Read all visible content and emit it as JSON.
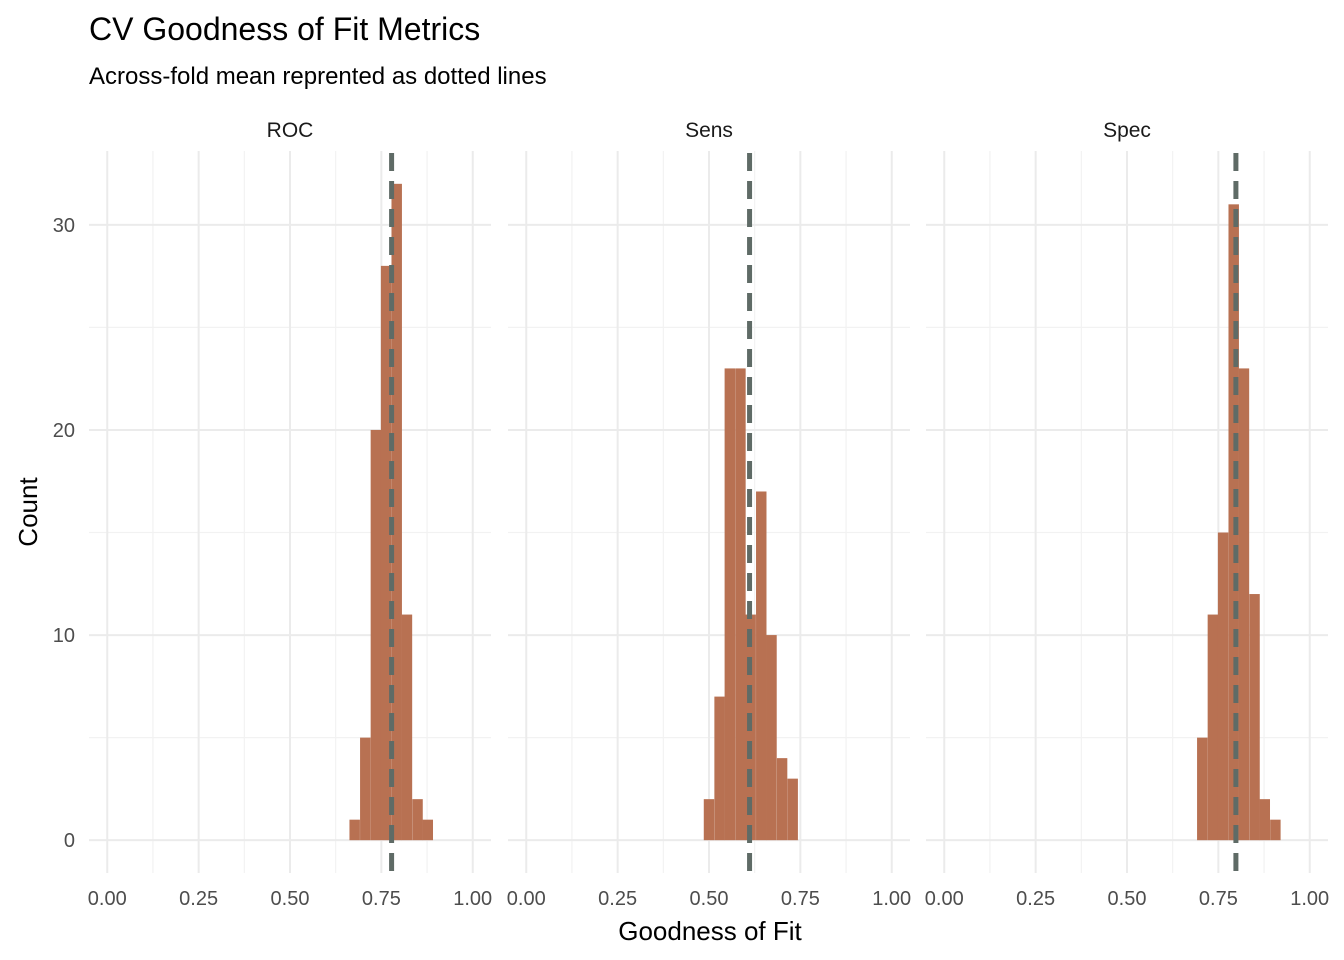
{
  "title": "CV Goodness of Fit Metrics",
  "subtitle": "Across-fold mean reprented as dotted lines",
  "chart_data": {
    "type": "histogram",
    "xlabel": "Goodness of Fit",
    "ylabel": "Count",
    "xlim": [
      -0.05,
      1.05
    ],
    "ylim": [
      -1.6,
      33.6
    ],
    "x_ticks": [
      "0.00",
      "0.25",
      "0.50",
      "0.75",
      "1.00"
    ],
    "y_ticks": [
      "0",
      "10",
      "20",
      "30"
    ],
    "grid": true,
    "bar_color": "#B87152",
    "mean_line_color": "#5F6B66",
    "bin_width": 0.0286,
    "facets": [
      {
        "name": "ROC",
        "mean": 0.778,
        "bins": [
          {
            "x": 0.677,
            "count": 1
          },
          {
            "x": 0.706,
            "count": 5
          },
          {
            "x": 0.735,
            "count": 20
          },
          {
            "x": 0.763,
            "count": 28
          },
          {
            "x": 0.792,
            "count": 32
          },
          {
            "x": 0.82,
            "count": 11
          },
          {
            "x": 0.849,
            "count": 2
          },
          {
            "x": 0.877,
            "count": 1
          }
        ]
      },
      {
        "name": "Sens",
        "mean": 0.611,
        "bins": [
          {
            "x": 0.5,
            "count": 2
          },
          {
            "x": 0.529,
            "count": 7
          },
          {
            "x": 0.557,
            "count": 23
          },
          {
            "x": 0.586,
            "count": 23
          },
          {
            "x": 0.614,
            "count": 11
          },
          {
            "x": 0.643,
            "count": 17
          },
          {
            "x": 0.671,
            "count": 10
          },
          {
            "x": 0.7,
            "count": 4
          },
          {
            "x": 0.729,
            "count": 3
          }
        ]
      },
      {
        "name": "Spec",
        "mean": 0.798,
        "bins": [
          {
            "x": 0.706,
            "count": 5
          },
          {
            "x": 0.735,
            "count": 11
          },
          {
            "x": 0.763,
            "count": 15
          },
          {
            "x": 0.792,
            "count": 31
          },
          {
            "x": 0.82,
            "count": 23
          },
          {
            "x": 0.849,
            "count": 12
          },
          {
            "x": 0.877,
            "count": 2
          },
          {
            "x": 0.906,
            "count": 1
          }
        ]
      }
    ]
  }
}
